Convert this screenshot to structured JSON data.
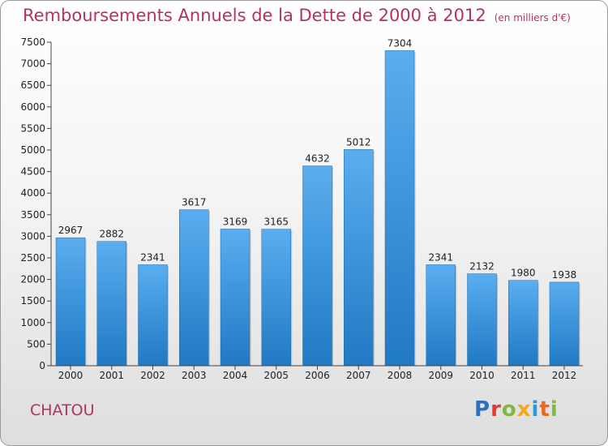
{
  "header": {
    "title": "Remboursements Annuels de la Dette de 2000 à 2012",
    "unit": "(en milliers d'€)"
  },
  "footer": {
    "city": "CHATOU",
    "logo": {
      "letters": [
        {
          "ch": "P",
          "color": "#2b6fbf"
        },
        {
          "ch": "r",
          "color": "#e53b2c"
        },
        {
          "ch": "o",
          "color": "#7fb93f"
        },
        {
          "ch": "x",
          "color": "#f2a81d"
        },
        {
          "ch": "i",
          "color": "#2b9ad6"
        },
        {
          "ch": "t",
          "color": "#e86a1f"
        },
        {
          "ch": "i",
          "color": "#7fb93f"
        }
      ]
    }
  },
  "chart_data": {
    "type": "bar",
    "categories": [
      "2000",
      "2001",
      "2002",
      "2003",
      "2004",
      "2005",
      "2006",
      "2007",
      "2008",
      "2009",
      "2010",
      "2011",
      "2012"
    ],
    "values": [
      2967,
      2882,
      2341,
      3617,
      3169,
      3165,
      4632,
      5012,
      7304,
      2341,
      2132,
      1980,
      1938
    ],
    "ylim": [
      0,
      7500
    ],
    "yticks": [
      0,
      500,
      1000,
      1500,
      2000,
      2500,
      3000,
      3500,
      4000,
      4500,
      5000,
      5500,
      6000,
      6500,
      7000,
      7500
    ],
    "grid": false,
    "colors": {
      "bar_top": "#5aaef0",
      "bar_bottom": "#2079c3",
      "title": "#b5325e"
    }
  }
}
